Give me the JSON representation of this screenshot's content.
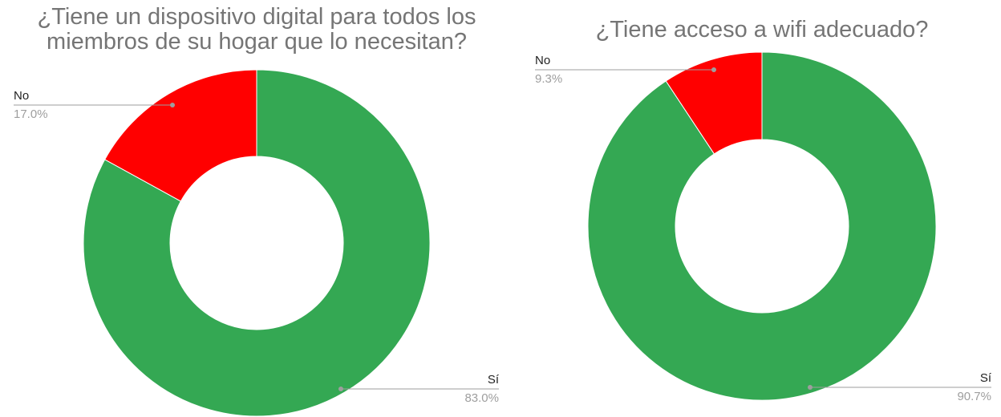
{
  "chart_data": [
    {
      "type": "donut",
      "title": "¿Tiene un dispositivo digital para todos los miembros de su hogar que lo necesitan?",
      "categories": [
        "Sí",
        "No"
      ],
      "values": [
        83.0,
        17.0
      ],
      "value_labels": [
        "83.0%",
        "17.0%"
      ],
      "colors": [
        "#34a853",
        "#ff0000"
      ]
    },
    {
      "type": "donut",
      "title": "¿Tiene acceso a wifi adecuado?",
      "categories": [
        "Sí",
        "No"
      ],
      "values": [
        90.7,
        9.3
      ],
      "value_labels": [
        "90.7%",
        "9.3%"
      ],
      "colors": [
        "#34a853",
        "#ff0000"
      ]
    }
  ]
}
